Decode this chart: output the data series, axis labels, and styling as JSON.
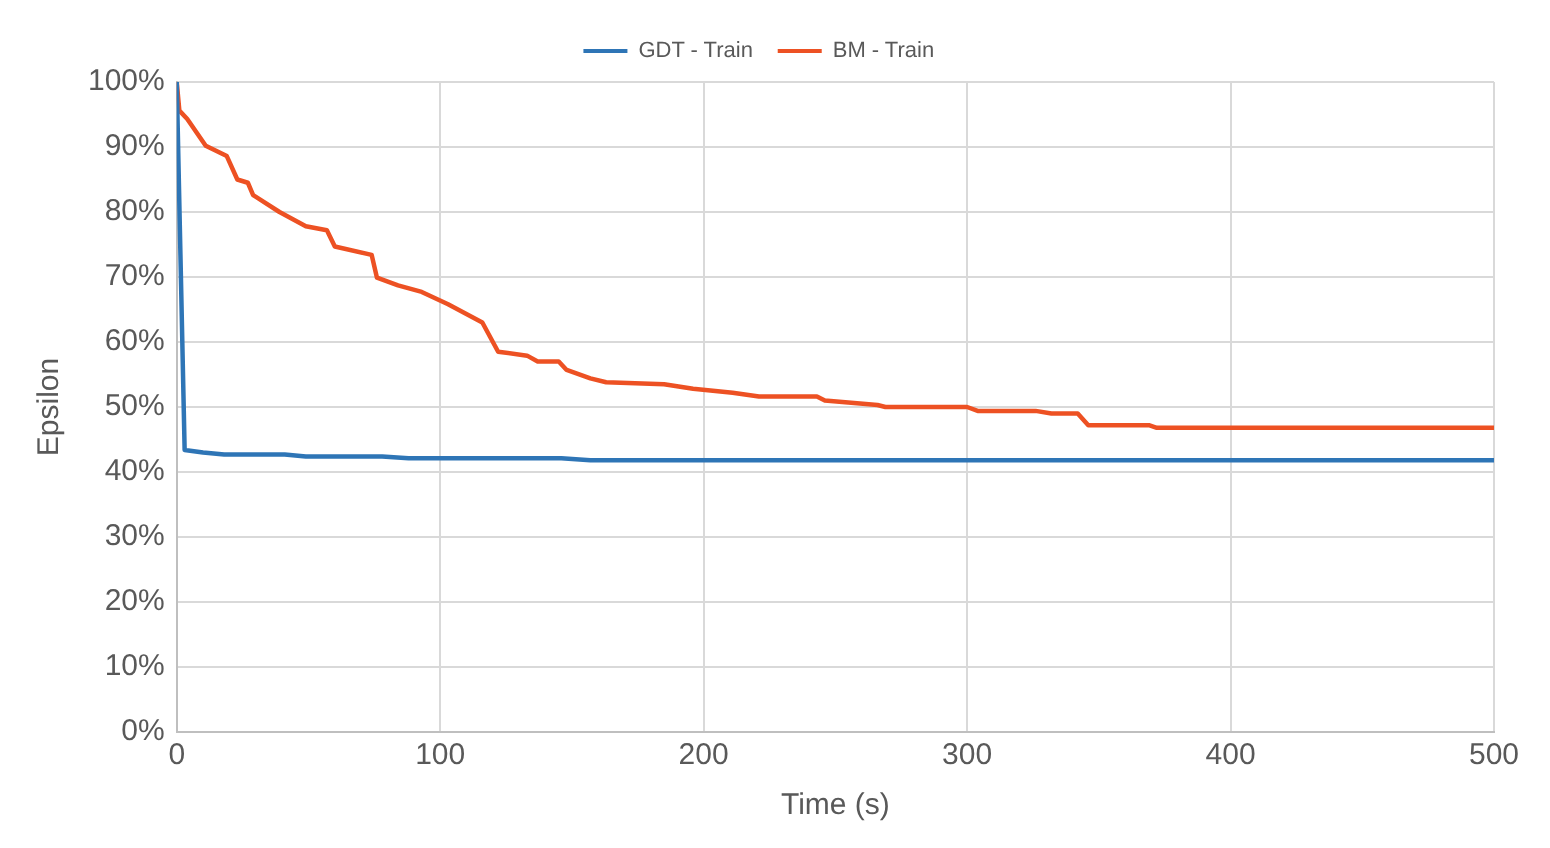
{
  "chart_data": {
    "type": "line",
    "xlabel": "Time (s)",
    "ylabel": "Epsilon",
    "xlim": [
      0,
      500
    ],
    "xticks": [
      0,
      100,
      200,
      300,
      400,
      500
    ],
    "ylim": [
      0,
      100
    ],
    "yticks": [
      {
        "value": 0,
        "label": "0%"
      },
      {
        "value": 10,
        "label": "10%"
      },
      {
        "value": 20,
        "label": "20%"
      },
      {
        "value": 30,
        "label": "30%"
      },
      {
        "value": 40,
        "label": "40%"
      },
      {
        "value": 50,
        "label": "50%"
      },
      {
        "value": 60,
        "label": "60%"
      },
      {
        "value": 70,
        "label": "70%"
      },
      {
        "value": 80,
        "label": "80%"
      },
      {
        "value": 90,
        "label": "90%"
      },
      {
        "value": 100,
        "label": "100%"
      }
    ],
    "grid": true,
    "legend": "top",
    "marker": "none",
    "line_style": "solid",
    "series": [
      {
        "name": "GDT - Train",
        "color": "#2e75b6",
        "x": [
          0,
          3,
          10,
          18,
          41,
          49,
          78,
          88,
          146,
          157,
          500
        ],
        "values": [
          100,
          43.4,
          43,
          42.7,
          42.7,
          42.4,
          42.4,
          42.1,
          42.1,
          41.8,
          41.8
        ]
      },
      {
        "name": "BM - Train",
        "color": "#ed5123",
        "x": [
          0,
          1,
          4,
          11,
          19,
          23,
          27,
          29,
          39,
          49,
          57,
          60,
          74,
          76,
          84,
          93,
          103,
          116,
          122,
          133,
          137,
          145,
          148,
          157,
          163,
          185,
          196,
          211,
          221,
          243,
          246,
          266,
          269,
          300,
          304,
          326,
          332,
          342,
          346,
          369,
          372,
          500
        ],
        "values": [
          100,
          95.6,
          94.3,
          90.2,
          88.6,
          85,
          84.5,
          82.6,
          80,
          77.8,
          77.2,
          74.7,
          73.4,
          69.9,
          68.7,
          67.7,
          65.8,
          63,
          58.5,
          57.9,
          57,
          57,
          55.7,
          54.4,
          53.8,
          53.5,
          52.8,
          52.2,
          51.6,
          51.6,
          51,
          50.3,
          50,
          50,
          49.4,
          49.4,
          49,
          49,
          47.2,
          47.2,
          46.8,
          46.8
        ]
      }
    ]
  }
}
